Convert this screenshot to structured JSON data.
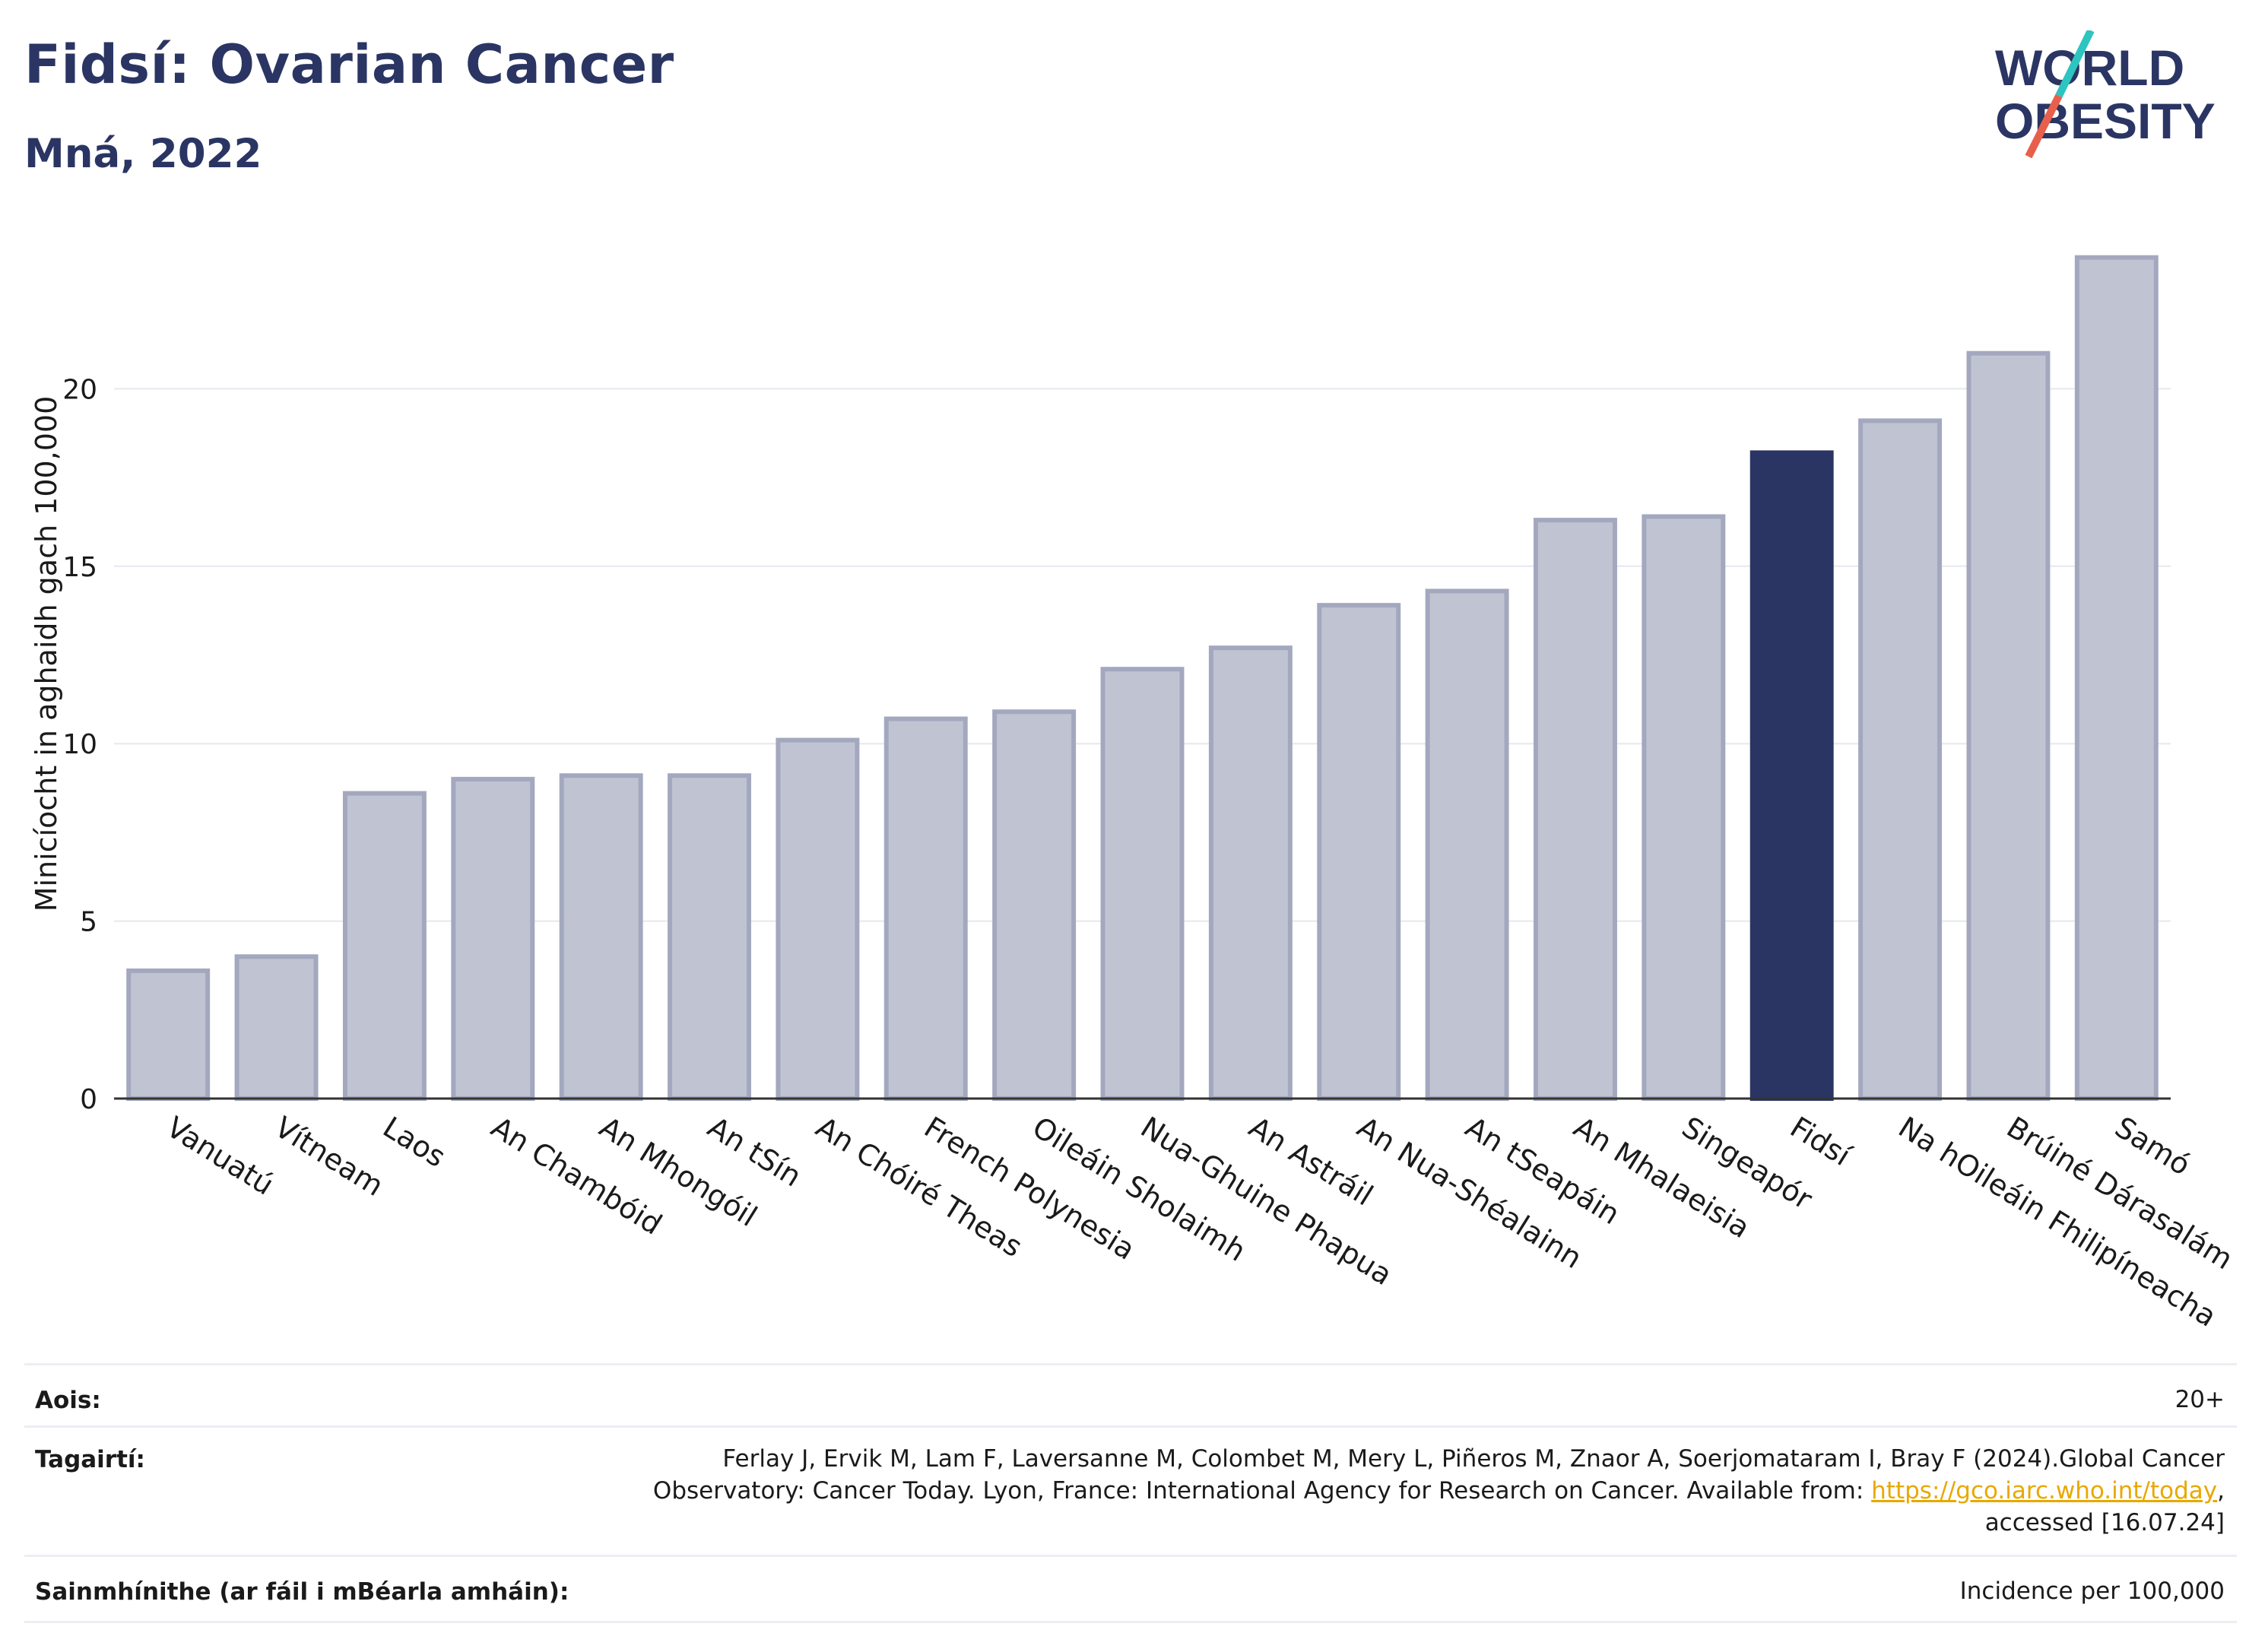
{
  "header": {
    "title": "Fidsí: Ovarian Cancer",
    "subtitle": "Mná, 2022"
  },
  "logo": {
    "line1": "WORLD",
    "line2": "OBESITY",
    "colors": {
      "text": "#2a3563",
      "slash_top": "#2ec4c0",
      "slash_bottom": "#e8604c"
    }
  },
  "colors": {
    "bar": "#c0c4d2",
    "bar_outline": "#a3a8bf",
    "highlight": "#2a3563",
    "grid": "#e6e8ef"
  },
  "chart_data": {
    "type": "bar",
    "ylabel": "Minicíocht in aghaidh gach 100,000",
    "ylim": [
      0,
      25
    ],
    "yticks": [
      0,
      5,
      10,
      15,
      20
    ],
    "grid": true,
    "highlight": "Fidsí",
    "categories": [
      "Vanuatú",
      "Vítneam",
      "Laos",
      "An Chambóid",
      "An Mhongóil",
      "An tSín",
      "An Chóiré Theas",
      "French Polynesia",
      "Oileáin Sholaimh",
      "Nua-Ghuine Phapua",
      "An Astráil",
      "An Nua-Shéalainn",
      "An tSeapáin",
      "An Mhalaeisia",
      "Singeapór",
      "Fidsí",
      "Na hOileáin Fhilipíneacha",
      "Brúiné Dárasalám",
      "Samó"
    ],
    "values": [
      3.6,
      4.0,
      8.6,
      9.0,
      9.1,
      9.1,
      10.1,
      10.7,
      10.9,
      12.1,
      12.7,
      13.9,
      14.3,
      16.3,
      16.4,
      18.2,
      19.1,
      21.0,
      23.7
    ]
  },
  "table": {
    "age_label": "Aois:",
    "age_value": "20+",
    "ref_label": "Tagairtí:",
    "ref_line1": "Ferlay J, Ervik M, Lam F, Laversanne M, Colombet M, Mery L, Piñeros M, Znaor A, Soerjomataram I, Bray F (2024).Global Cancer",
    "ref_line2_pre": "Observatory: Cancer Today. Lyon, France: International Agency for Research on Cancer. Available from: ",
    "ref_link": "https://gco.iarc.who.int/today",
    "ref_line2_post": ",",
    "ref_line3": "accessed [16.07.24]",
    "def_label": "Sainmhínithe (ar fáil i mBéarla amháin):",
    "def_value": "Incidence per 100,000"
  }
}
